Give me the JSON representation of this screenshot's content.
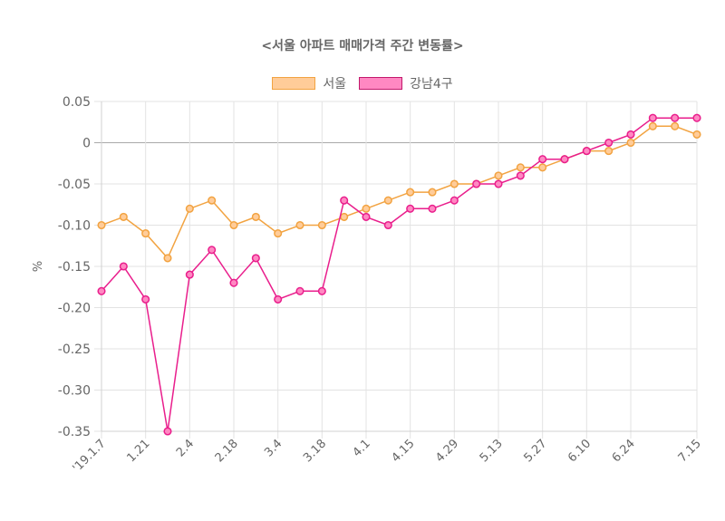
{
  "chart_data": {
    "type": "line",
    "title": "<서울 아파트 매매가격 주간 변동률>",
    "ylabel": "%",
    "xlabel": "",
    "ylim": [
      -0.35,
      0.05
    ],
    "yticks": [
      "0.05",
      "0",
      "-0.05",
      "-0.10",
      "-0.15",
      "-0.20",
      "-0.25",
      "-0.30",
      "-0.35"
    ],
    "ytick_values": [
      0.05,
      0,
      -0.05,
      -0.1,
      -0.15,
      -0.2,
      -0.25,
      -0.3,
      -0.35
    ],
    "x_tick_labels": [
      "'19.1.7",
      "1.21",
      "2.4",
      "2.18",
      "3.4",
      "3.18",
      "4.1",
      "4.15",
      "4.29",
      "5.13",
      "5.27",
      "6.10",
      "6.24",
      "7.15"
    ],
    "x_tick_indices": [
      0,
      2,
      4,
      6,
      8,
      10,
      12,
      14,
      16,
      18,
      20,
      22,
      24,
      27
    ],
    "n_points": 28,
    "series": [
      {
        "name": "서울",
        "line_color": "#f2a341",
        "fill_color": "#ffcc99",
        "values": [
          -0.1,
          -0.09,
          -0.11,
          -0.14,
          -0.08,
          -0.07,
          -0.1,
          -0.09,
          -0.11,
          -0.1,
          -0.1,
          -0.09,
          -0.08,
          -0.07,
          -0.06,
          -0.06,
          -0.05,
          -0.05,
          -0.04,
          -0.03,
          -0.03,
          -0.02,
          -0.01,
          -0.01,
          0.0,
          0.02,
          0.02,
          0.01
        ]
      },
      {
        "name": "강남4구",
        "line_color": "#e91e8c",
        "fill_color": "#ff88c2",
        "values": [
          -0.18,
          -0.15,
          -0.19,
          -0.35,
          -0.16,
          -0.13,
          -0.17,
          -0.14,
          -0.19,
          -0.18,
          -0.18,
          -0.07,
          -0.09,
          -0.1,
          -0.08,
          -0.08,
          -0.07,
          -0.05,
          -0.05,
          -0.04,
          -0.02,
          -0.02,
          -0.01,
          0.0,
          0.01,
          0.03,
          0.03,
          0.03
        ]
      }
    ]
  }
}
